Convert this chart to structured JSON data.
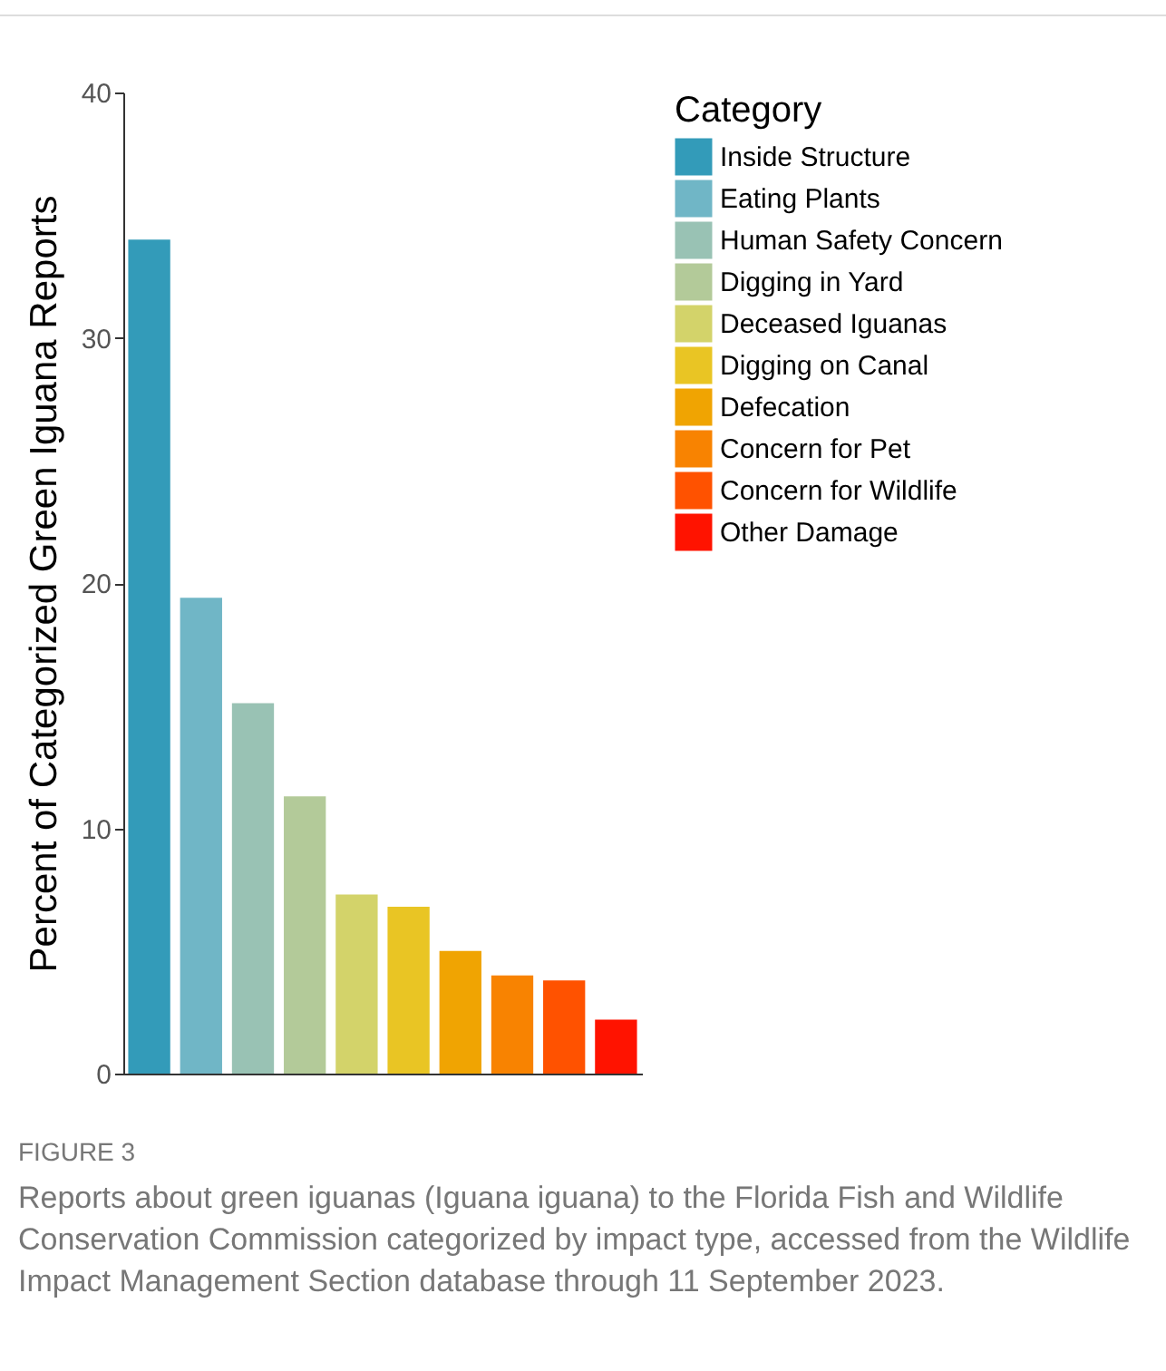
{
  "chart_data": {
    "type": "bar",
    "ylabel": "Percent of Categorized Green Iguana Reports",
    "legend_title": "Category",
    "categories": [
      null,
      null,
      null,
      null,
      null,
      null,
      null,
      null,
      null,
      null
    ],
    "series": [
      {
        "name": "Inside Structure",
        "color": "#339bb9",
        "values": [
          34.0,
          null,
          null,
          null,
          null,
          null,
          null,
          null,
          null,
          null
        ]
      },
      {
        "name": "Eating Plants",
        "color": "#70b6c6",
        "values": [
          null,
          19.4,
          null,
          null,
          null,
          null,
          null,
          null,
          null,
          null
        ]
      },
      {
        "name": "Human Safety Concern",
        "color": "#99c2b4",
        "values": [
          null,
          null,
          15.1,
          null,
          null,
          null,
          null,
          null,
          null,
          null
        ]
      },
      {
        "name": "Digging in Yard",
        "color": "#b3ca99",
        "values": [
          null,
          null,
          null,
          11.3,
          null,
          null,
          null,
          null,
          null,
          null
        ]
      },
      {
        "name": "Deceased Iguanas",
        "color": "#d3d36a",
        "values": [
          null,
          null,
          null,
          null,
          7.3,
          null,
          null,
          null,
          null,
          null
        ]
      },
      {
        "name": "Digging on Canal",
        "color": "#e9c524",
        "values": [
          null,
          null,
          null,
          null,
          null,
          6.8,
          null,
          null,
          null,
          null
        ]
      },
      {
        "name": "Defecation",
        "color": "#f0a402",
        "values": [
          null,
          null,
          null,
          null,
          null,
          null,
          5.0,
          null,
          null,
          null
        ]
      },
      {
        "name": "Concern for Pet",
        "color": "#f88301",
        "values": [
          null,
          null,
          null,
          null,
          null,
          null,
          null,
          4.0,
          null,
          null
        ]
      },
      {
        "name": "Concern for Wildlife",
        "color": "#ff5200",
        "values": [
          null,
          null,
          null,
          null,
          null,
          null,
          null,
          null,
          3.8,
          null
        ]
      },
      {
        "name": "Other Damage",
        "color": "#ff1300",
        "values": [
          null,
          null,
          null,
          null,
          null,
          null,
          null,
          null,
          null,
          2.2
        ]
      }
    ],
    "ylim": [
      0,
      40
    ],
    "yticks": [
      0,
      10,
      20,
      30,
      40
    ],
    "grid": false,
    "legend": "right",
    "tick_labels": "y",
    "annotations": [
      "FIGURE 3",
      "Reports about green iguanas (Iguana iguana) to the Florida Fish and Wildlife Conservation Commission categorized by impact type, accessed from the Wildlife Impact Management Section database through 11 September 2023."
    ]
  }
}
